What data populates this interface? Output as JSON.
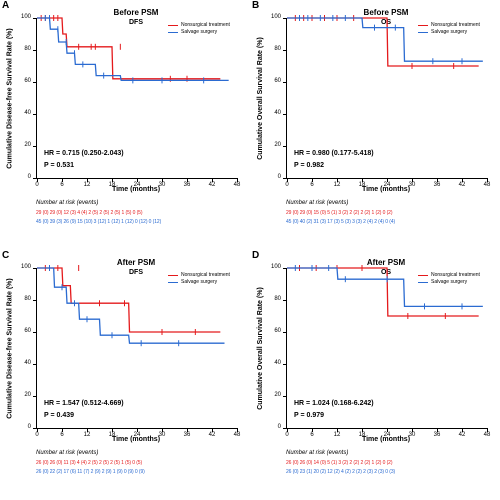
{
  "global": {
    "xmax": 48,
    "ymin": 0,
    "ymax": 100,
    "xticks": [
      0,
      6,
      12,
      18,
      24,
      30,
      36,
      42,
      48
    ],
    "yticks": [
      0,
      20,
      40,
      60,
      80,
      100
    ],
    "xlabel": "Time (months)",
    "risk_title": "Number at risk (events)",
    "legend": [
      {
        "label": "Nonsurgical treatment",
        "color": "#e41a1c"
      },
      {
        "label": "Salvage surgery",
        "color": "#2b6bd1"
      }
    ]
  },
  "panels": [
    {
      "id": "A",
      "title1": "Before PSM",
      "title2": "DFS",
      "ylabel": "Cumulative Disease-free Survival Rate (%)",
      "hr": "HR = 0.715 (0.250-2.043)",
      "p": "P = 0.531",
      "series": [
        {
          "color": "#e41a1c",
          "censor": [
            [
              1,
              100
            ],
            [
              2,
              100
            ],
            [
              4,
              100
            ],
            [
              5,
              100
            ],
            [
              10,
              82
            ],
            [
              13,
              82
            ],
            [
              14,
              82
            ],
            [
              20,
              82
            ],
            [
              32,
              62
            ],
            [
              36,
              62
            ]
          ],
          "pts": [
            [
              0,
              100
            ],
            [
              6,
              100
            ],
            [
              6.2,
              90
            ],
            [
              7,
              90
            ],
            [
              7.2,
              82
            ],
            [
              18,
              82
            ],
            [
              18.2,
              62
            ],
            [
              44,
              62
            ]
          ]
        },
        {
          "color": "#2b6bd1",
          "censor": [
            [
              2,
              100
            ],
            [
              3,
              100
            ],
            [
              5,
              93
            ],
            [
              7,
              85
            ],
            [
              9,
              78
            ],
            [
              11,
              71
            ],
            [
              16,
              64
            ],
            [
              23,
              61
            ],
            [
              30,
              61
            ],
            [
              40,
              61
            ]
          ],
          "pts": [
            [
              0,
              100
            ],
            [
              3,
              100
            ],
            [
              3.2,
              93
            ],
            [
              5,
              93
            ],
            [
              5.2,
              85
            ],
            [
              7,
              85
            ],
            [
              7.2,
              78
            ],
            [
              9,
              78
            ],
            [
              9.2,
              71
            ],
            [
              14,
              71
            ],
            [
              14.2,
              64
            ],
            [
              20,
              64
            ],
            [
              20.2,
              61
            ],
            [
              46,
              61
            ]
          ]
        }
      ],
      "risk": [
        {
          "color": "#e41a1c",
          "text": "29 (0)   29 (0)   12 (3)   4 (4)   2 (5)   2 (5)   2 (5)   1 (5)   0 (5)"
        },
        {
          "color": "#2b6bd1",
          "text": "45 (0)   39 (3)   26 (9)  15 (10)  3 (12)  1 (12)  1 (12)  0 (12)  0 (12)"
        }
      ]
    },
    {
      "id": "B",
      "title1": "Before PSM",
      "title2": "OS",
      "ylabel": "Cumulative Overall Survival Rate (%)",
      "hr": "HR = 0.980 (0.177-5.418)",
      "p": "P = 0.982",
      "series": [
        {
          "color": "#e41a1c",
          "censor": [
            [
              2,
              100
            ],
            [
              4,
              100
            ],
            [
              6,
              100
            ],
            [
              9,
              100
            ],
            [
              12,
              100
            ],
            [
              16,
              100
            ],
            [
              30,
              70
            ],
            [
              40,
              70
            ]
          ],
          "pts": [
            [
              0,
              100
            ],
            [
              24,
              100
            ],
            [
              24.2,
              70
            ],
            [
              46,
              70
            ]
          ]
        },
        {
          "color": "#2b6bd1",
          "censor": [
            [
              3,
              100
            ],
            [
              5,
              100
            ],
            [
              8,
              100
            ],
            [
              11,
              100
            ],
            [
              14,
              100
            ],
            [
              21,
              94
            ],
            [
              26,
              94
            ],
            [
              35,
              73
            ],
            [
              42,
              73
            ]
          ],
          "pts": [
            [
              0,
              100
            ],
            [
              18,
              100
            ],
            [
              18.2,
              94
            ],
            [
              28,
              94
            ],
            [
              28.2,
              73
            ],
            [
              47,
              73
            ]
          ]
        }
      ],
      "risk": [
        {
          "color": "#e41a1c",
          "text": "29 (0)   29 (0)   15 (0)   5 (1)   3 (2)   2 (2)   2 (2)   1 (2)   0 (2)"
        },
        {
          "color": "#2b6bd1",
          "text": "45 (0)   40 (2)   31 (3)  17 (3)   5 (3)   3 (3)   2 (4)   2 (4)   0 (4)"
        }
      ]
    },
    {
      "id": "C",
      "title1": "After PSM",
      "title2": "DFS",
      "ylabel": "Cumulative Disease-free Survival Rate (%)",
      "hr": "HR = 1.547 (0.512-4.669)",
      "p": "P = 0.439",
      "series": [
        {
          "color": "#e41a1c",
          "censor": [
            [
              2,
              100
            ],
            [
              5,
              100
            ],
            [
              10,
              100
            ],
            [
              15,
              78
            ],
            [
              21,
              78
            ],
            [
              30,
              60
            ],
            [
              38,
              60
            ]
          ],
          "pts": [
            [
              0,
              100
            ],
            [
              6,
              100
            ],
            [
              6.2,
              89
            ],
            [
              8,
              89
            ],
            [
              8.2,
              78
            ],
            [
              22,
              78
            ],
            [
              22.2,
              60
            ],
            [
              44,
              60
            ]
          ]
        },
        {
          "color": "#2b6bd1",
          "censor": [
            [
              3,
              100
            ],
            [
              6,
              88
            ],
            [
              9,
              78
            ],
            [
              12,
              68
            ],
            [
              18,
              58
            ],
            [
              25,
              53
            ],
            [
              34,
              53
            ]
          ],
          "pts": [
            [
              0,
              100
            ],
            [
              4,
              100
            ],
            [
              4.2,
              88
            ],
            [
              7,
              88
            ],
            [
              7.2,
              78
            ],
            [
              10,
              78
            ],
            [
              10.2,
              68
            ],
            [
              15,
              68
            ],
            [
              15.2,
              58
            ],
            [
              22,
              58
            ],
            [
              22.2,
              53
            ],
            [
              45,
              53
            ]
          ]
        }
      ],
      "risk": [
        {
          "color": "#e41a1c",
          "text": "26 (0)   26 (0)   11 (3)   4 (4)   2 (5)   2 (5)   2 (5)   1 (5)   0 (5)"
        },
        {
          "color": "#2b6bd1",
          "text": "26 (0)   22 (2)   17 (6)  11 (7)   2 (9)   2 (9)   1 (9)   0 (9)   0 (9)"
        }
      ]
    },
    {
      "id": "D",
      "title1": "After PSM",
      "title2": "OS",
      "ylabel": "Cumulative Overall Survival Rate (%)",
      "hr": "HR = 1.024 (0.168-6.242)",
      "p": "P = 0.979",
      "series": [
        {
          "color": "#e41a1c",
          "censor": [
            [
              3,
              100
            ],
            [
              7,
              100
            ],
            [
              12,
              100
            ],
            [
              18,
              100
            ],
            [
              29,
              70
            ],
            [
              38,
              70
            ]
          ],
          "pts": [
            [
              0,
              100
            ],
            [
              24,
              100
            ],
            [
              24.2,
              70
            ],
            [
              46,
              70
            ]
          ]
        },
        {
          "color": "#2b6bd1",
          "censor": [
            [
              2,
              100
            ],
            [
              6,
              100
            ],
            [
              10,
              100
            ],
            [
              14,
              93
            ],
            [
              24,
              93
            ],
            [
              33,
              76
            ],
            [
              42,
              76
            ]
          ],
          "pts": [
            [
              0,
              100
            ],
            [
              12,
              100
            ],
            [
              12.2,
              93
            ],
            [
              28,
              93
            ],
            [
              28.2,
              76
            ],
            [
              47,
              76
            ]
          ]
        }
      ],
      "risk": [
        {
          "color": "#e41a1c",
          "text": "26 (0)   26 (0)   14 (0)   5 (1)   3 (2)   2 (2)   2 (2)   1 (2)   0 (2)"
        },
        {
          "color": "#2b6bd1",
          "text": "26 (0)   23 (1)   20 (2)  12 (2)   4 (2)   2 (2)   2 (3)   2 (3)   0 (3)"
        }
      ]
    }
  ]
}
